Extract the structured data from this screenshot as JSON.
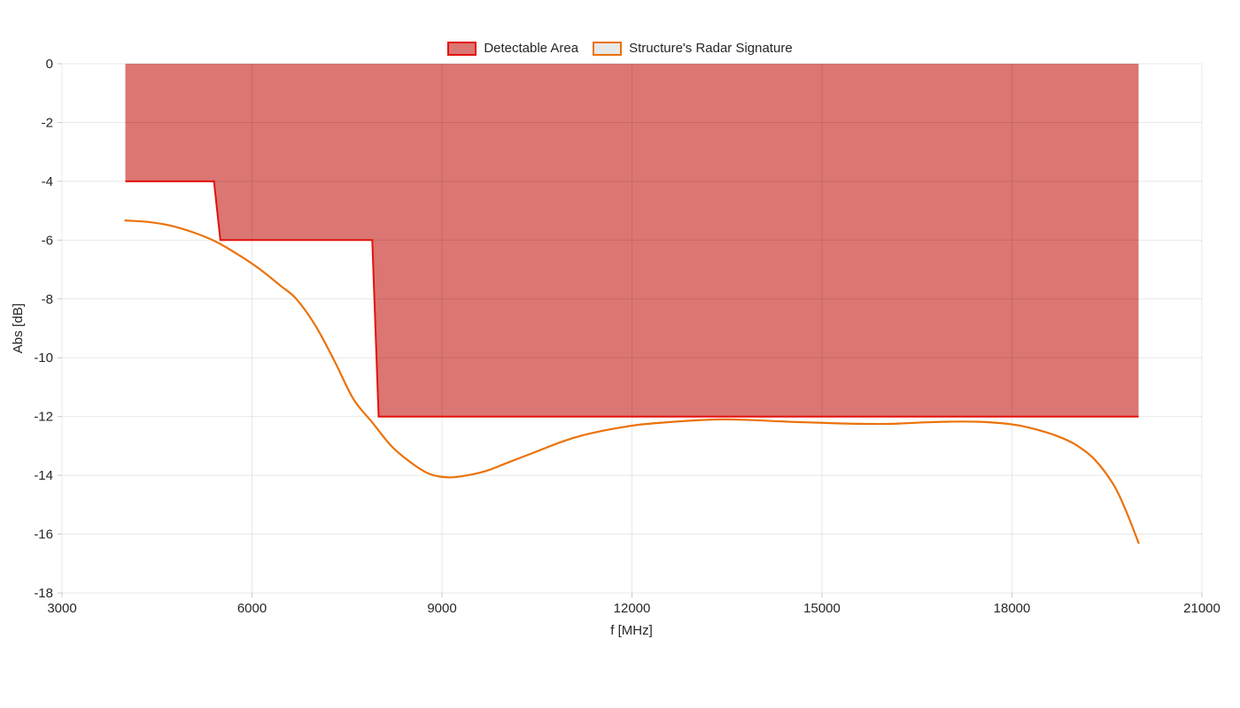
{
  "legend": {
    "items": [
      {
        "label": "Detectable Area",
        "border": "#E3120B",
        "fill": "#DB7672"
      },
      {
        "label": "Structure's Radar Signature",
        "border": "#EB720A",
        "fill": "#E8E8E8"
      }
    ]
  },
  "chart_data": {
    "type": "area+line",
    "title": "",
    "xlabel": "f [MHz]",
    "ylabel": "Abs [dB]",
    "xlim": [
      3000,
      21000
    ],
    "ylim": [
      -18,
      0
    ],
    "x_ticks": [
      3000,
      6000,
      9000,
      12000,
      15000,
      18000,
      21000
    ],
    "y_ticks": [
      0,
      -2,
      -4,
      -6,
      -8,
      -10,
      -12,
      -14,
      -16,
      -18
    ],
    "grid": true,
    "legend_position": "top-center",
    "colors": {
      "detectable_area_line": "#E3120B",
      "detectable_area_fill": "#DB7672",
      "radar_signature_line": "#EB720A",
      "gridline": "rgba(0,0,0,0.09)",
      "tick": "#C9C9C9",
      "text": "#262626"
    },
    "series": [
      {
        "name": "Detectable Area",
        "type": "area",
        "fill_to": 0,
        "points": [
          [
            4000,
            -4
          ],
          [
            5400,
            -4
          ],
          [
            5500,
            -6
          ],
          [
            7900,
            -6
          ],
          [
            8000,
            -12
          ],
          [
            20000,
            -12
          ]
        ]
      },
      {
        "name": "Structure's Radar Signature",
        "type": "line",
        "smooth": true,
        "points": [
          [
            4000,
            -5.33
          ],
          [
            4350,
            -5.38
          ],
          [
            4700,
            -5.5
          ],
          [
            5050,
            -5.72
          ],
          [
            5400,
            -6.02
          ],
          [
            5750,
            -6.45
          ],
          [
            6100,
            -6.95
          ],
          [
            6450,
            -7.55
          ],
          [
            6700,
            -8.0
          ],
          [
            7000,
            -8.9
          ],
          [
            7300,
            -10.1
          ],
          [
            7600,
            -11.4
          ],
          [
            7900,
            -12.2
          ],
          [
            8200,
            -13.0
          ],
          [
            8500,
            -13.55
          ],
          [
            8800,
            -13.95
          ],
          [
            9100,
            -14.07
          ],
          [
            9400,
            -14.0
          ],
          [
            9700,
            -13.85
          ],
          [
            10000,
            -13.6
          ],
          [
            10300,
            -13.35
          ],
          [
            10600,
            -13.1
          ],
          [
            10900,
            -12.85
          ],
          [
            11200,
            -12.65
          ],
          [
            11500,
            -12.5
          ],
          [
            11800,
            -12.38
          ],
          [
            12100,
            -12.28
          ],
          [
            12400,
            -12.22
          ],
          [
            12700,
            -12.17
          ],
          [
            13000,
            -12.13
          ],
          [
            13300,
            -12.1
          ],
          [
            13600,
            -12.1
          ],
          [
            13900,
            -12.12
          ],
          [
            14200,
            -12.15
          ],
          [
            14500,
            -12.18
          ],
          [
            14800,
            -12.2
          ],
          [
            15100,
            -12.22
          ],
          [
            15400,
            -12.24
          ],
          [
            15700,
            -12.25
          ],
          [
            16000,
            -12.25
          ],
          [
            16300,
            -12.23
          ],
          [
            16600,
            -12.2
          ],
          [
            16900,
            -12.18
          ],
          [
            17200,
            -12.17
          ],
          [
            17500,
            -12.18
          ],
          [
            17800,
            -12.22
          ],
          [
            18100,
            -12.3
          ],
          [
            18400,
            -12.45
          ],
          [
            18700,
            -12.65
          ],
          [
            19000,
            -12.95
          ],
          [
            19300,
            -13.45
          ],
          [
            19600,
            -14.3
          ],
          [
            19800,
            -15.2
          ],
          [
            20000,
            -16.3
          ]
        ]
      }
    ]
  }
}
